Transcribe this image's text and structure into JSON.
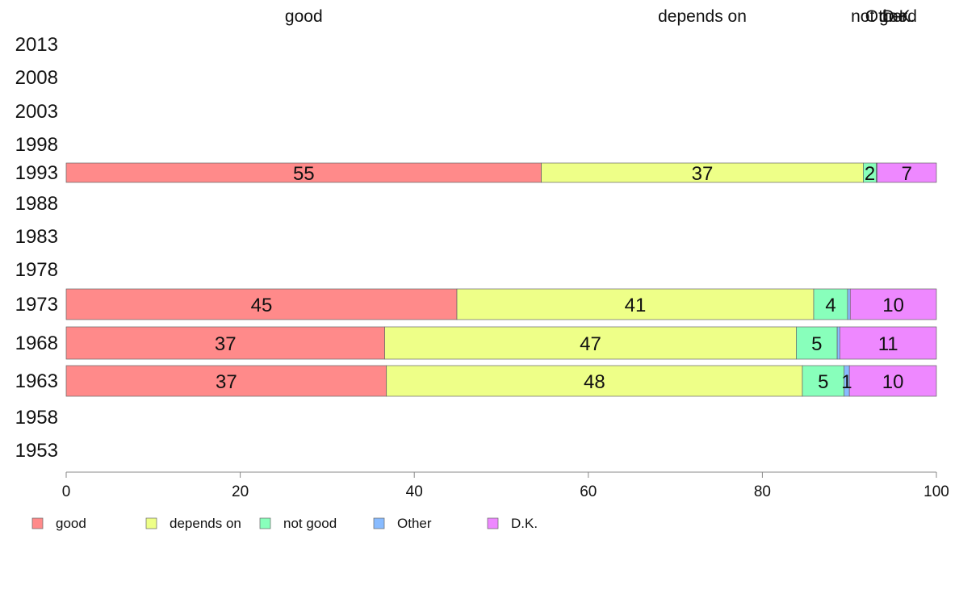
{
  "chart_data": {
    "type": "bar",
    "orientation": "horizontal",
    "stacked": true,
    "categories": [
      "2013",
      "2008",
      "2003",
      "1998",
      "1993",
      "1988",
      "1983",
      "1978",
      "1973",
      "1968",
      "1963",
      "1958",
      "1953"
    ],
    "series": [
      {
        "name": "good",
        "color": "#ff8a8a",
        "values": [
          null,
          null,
          null,
          null,
          54.6,
          null,
          null,
          null,
          44.9,
          36.6,
          36.8,
          null,
          null
        ]
      },
      {
        "name": "depends on",
        "color": "#eeff88",
        "values": [
          null,
          null,
          null,
          null,
          37.0,
          null,
          null,
          null,
          41.0,
          47.3,
          47.8,
          null,
          null
        ]
      },
      {
        "name": "not good",
        "color": "#88ffbb",
        "values": [
          null,
          null,
          null,
          null,
          1.5,
          null,
          null,
          null,
          3.9,
          4.7,
          4.8,
          null,
          null
        ]
      },
      {
        "name": "Other",
        "color": "#88bbff",
        "values": [
          null,
          null,
          null,
          null,
          0.1,
          null,
          null,
          null,
          0.3,
          0.3,
          0.6,
          null,
          null
        ]
      },
      {
        "name": "D.K.",
        "color": "#ee88ff",
        "values": [
          null,
          null,
          null,
          null,
          6.8,
          null,
          null,
          null,
          9.9,
          11.1,
          10.0,
          null,
          null
        ]
      }
    ],
    "segment_labels": [
      {
        "category": "1993",
        "labels": [
          "55",
          "37",
          "2",
          "",
          "7"
        ]
      },
      {
        "category": "1973",
        "labels": [
          "45",
          "41",
          "4",
          "",
          "10"
        ]
      },
      {
        "category": "1968",
        "labels": [
          "37",
          "47",
          "5",
          "",
          "11"
        ]
      },
      {
        "category": "1963",
        "labels": [
          "37",
          "48",
          "5",
          "1",
          "10"
        ]
      }
    ],
    "top_labels": [
      "good",
      "depends on",
      "not good",
      "Other",
      "D.K."
    ],
    "xlim": [
      0,
      100
    ],
    "xticks": [
      "0",
      "20",
      "40",
      "60",
      "80",
      "100"
    ],
    "grid": false,
    "legend_position": "bottom-left"
  }
}
